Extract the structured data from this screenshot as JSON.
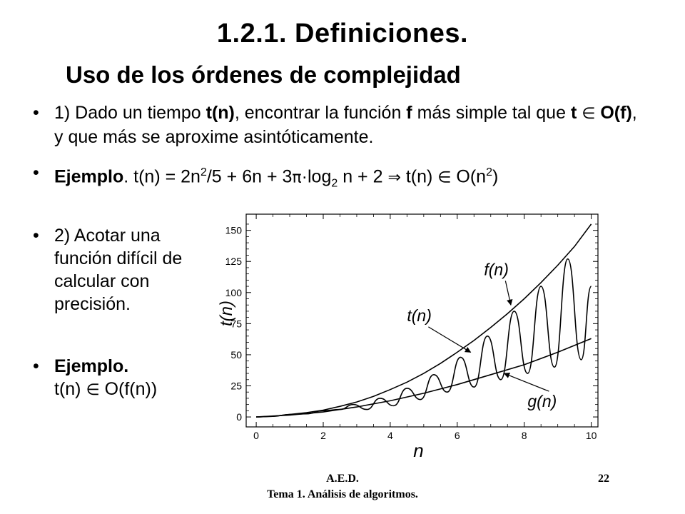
{
  "title": "1.2.1. Definiciones.",
  "subtitle": "Uso de los órdenes de complejidad",
  "bullets": {
    "b1": {
      "bullet": "•",
      "p1": "1) Dado un tiempo ",
      "tn": "t(n)",
      "p2": ", encontrar la función ",
      "f": "f",
      "p3": " más simple tal que ",
      "t": "t",
      "in": "∈",
      "of": "O(f)",
      "p4": ", y que más se aproxime asintóticamente."
    },
    "b2": {
      "bullet": "•",
      "ejemplo": "Ejemplo",
      "p1": ". t(n) = 2n",
      "exp1": "2",
      "p2": "/5 + 6n + 3",
      "pi": "π",
      "p3": "·log",
      "sub1": "2",
      "p4": " n + 2  ",
      "implies": "⇒",
      "p5": "  t(n) ",
      "in": "∈",
      "p6": " O(n",
      "exp2": "2",
      "p7": ")"
    },
    "b3": {
      "bullet": "•",
      "text": "2) Acotar una función difícil de calcular con precisión."
    },
    "b4": {
      "bullet": "•",
      "ejemplo": "Ejemplo.",
      "p1": "t(n) ",
      "in": "∈",
      "p2": " O(f(n))"
    }
  },
  "footer": {
    "left": "A.E.D.",
    "page": "22",
    "bottom": "Tema 1. Análisis de algoritmos."
  },
  "chart_data": {
    "type": "line",
    "xlabel": "n",
    "ylabel": "t(n)",
    "xlim": [
      -0.3,
      10.2
    ],
    "ylim": [
      -8,
      163
    ],
    "xticks": [
      0,
      2,
      4,
      6,
      8,
      10
    ],
    "yticks": [
      0,
      25,
      50,
      75,
      100,
      125,
      150
    ],
    "grid": false,
    "series": [
      {
        "name": "f(n)",
        "x": [
          0,
          0.5,
          1,
          1.5,
          2,
          2.5,
          3,
          3.5,
          4,
          4.5,
          5,
          5.5,
          6,
          6.5,
          7,
          7.5,
          8,
          8.5,
          9,
          9.5,
          10
        ],
        "values": [
          0,
          0.5,
          2,
          3.5,
          5.5,
          8.5,
          12,
          16.5,
          22,
          28,
          35,
          43,
          52,
          61.5,
          72,
          83,
          95,
          108,
          122,
          137,
          155
        ]
      },
      {
        "name": "t(n)",
        "x": [
          0,
          0.5,
          1,
          1.5,
          2,
          2.5,
          2.9,
          3.3,
          3.7,
          4.1,
          4.5,
          4.9,
          5.3,
          5.7,
          6.1,
          6.5,
          6.9,
          7.3,
          7.7,
          8.1,
          8.5,
          8.9,
          9.3,
          9.7,
          10
        ],
        "values": [
          0,
          0.5,
          2,
          2.5,
          5,
          6,
          10,
          6,
          15,
          9,
          23,
          14,
          34,
          20,
          48,
          24,
          65,
          30,
          85,
          35,
          105,
          40,
          127,
          46,
          105
        ]
      },
      {
        "name": "g(n)",
        "x": [
          0,
          1,
          2,
          3,
          4,
          5,
          6,
          7,
          8,
          9,
          10
        ],
        "values": [
          0,
          1.5,
          4,
          8,
          13,
          19,
          26,
          34,
          42,
          52,
          63
        ]
      }
    ],
    "annotations": [
      {
        "label": "f(n)",
        "x": 6.8,
        "y": 114,
        "arrow_to": [
          7.6,
          90
        ]
      },
      {
        "label": "t(n)",
        "x": 4.5,
        "y": 77,
        "arrow_to": [
          6.4,
          52
        ]
      },
      {
        "label": "g(n)",
        "x": 8.1,
        "y": 8,
        "arrow_to": [
          7.4,
          35
        ]
      }
    ]
  }
}
